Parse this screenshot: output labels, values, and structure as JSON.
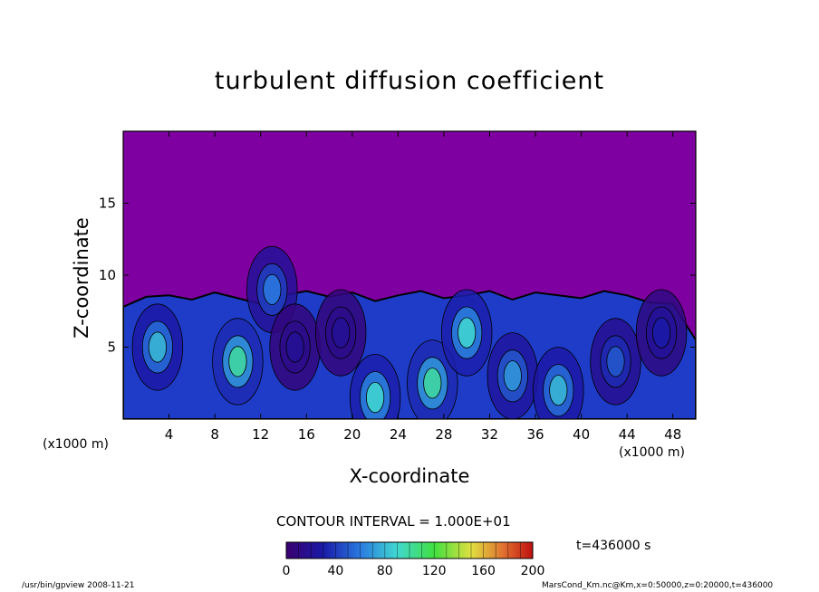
{
  "chart_data": {
    "type": "heatmap",
    "title": "turbulent diffusion coefficient",
    "xlabel": "X-coordinate",
    "ylabel": "Z-coordinate",
    "x_unit": "(x1000 m)",
    "xlim": [
      0,
      50
    ],
    "ylim": [
      0,
      20
    ],
    "x_ticks": [
      4,
      8,
      12,
      16,
      20,
      24,
      28,
      32,
      36,
      40,
      44,
      48
    ],
    "y_ticks": [
      5,
      10,
      15
    ],
    "contour_interval": "CONTOUR INTERVAL = 1.000E+01",
    "colorbar": {
      "min": 0,
      "max": 200,
      "ticks": [
        0,
        40,
        80,
        120,
        160,
        200
      ]
    },
    "time": "t=436000 s",
    "boundary_layer_top": [
      {
        "x": 0,
        "z": 7.8
      },
      {
        "x": 2,
        "z": 8.5
      },
      {
        "x": 4,
        "z": 8.6
      },
      {
        "x": 6,
        "z": 8.3
      },
      {
        "x": 8,
        "z": 8.8
      },
      {
        "x": 10,
        "z": 8.4
      },
      {
        "x": 12,
        "z": 8.0
      },
      {
        "x": 14,
        "z": 8.6
      },
      {
        "x": 16,
        "z": 8.9
      },
      {
        "x": 18,
        "z": 8.5
      },
      {
        "x": 20,
        "z": 8.8
      },
      {
        "x": 22,
        "z": 8.2
      },
      {
        "x": 24,
        "z": 8.6
      },
      {
        "x": 26,
        "z": 8.9
      },
      {
        "x": 28,
        "z": 8.4
      },
      {
        "x": 30,
        "z": 8.6
      },
      {
        "x": 32,
        "z": 8.9
      },
      {
        "x": 34,
        "z": 8.3
      },
      {
        "x": 36,
        "z": 8.8
      },
      {
        "x": 38,
        "z": 8.6
      },
      {
        "x": 40,
        "z": 8.4
      },
      {
        "x": 42,
        "z": 8.9
      },
      {
        "x": 44,
        "z": 8.6
      },
      {
        "x": 46,
        "z": 8.1
      },
      {
        "x": 48,
        "z": 8.0
      },
      {
        "x": 50,
        "z": 5.5
      }
    ],
    "plumes": [
      {
        "x": 3,
        "z": 5,
        "value": 80
      },
      {
        "x": 10,
        "z": 4,
        "value": 100
      },
      {
        "x": 13,
        "z": 9,
        "value": 60
      },
      {
        "x": 15,
        "z": 5,
        "value": 20
      },
      {
        "x": 19,
        "z": 6,
        "value": 20
      },
      {
        "x": 22,
        "z": 1.5,
        "value": 90
      },
      {
        "x": 27,
        "z": 2.5,
        "value": 100
      },
      {
        "x": 30,
        "z": 6,
        "value": 90
      },
      {
        "x": 34,
        "z": 3,
        "value": 70
      },
      {
        "x": 38,
        "z": 2,
        "value": 80
      },
      {
        "x": 43,
        "z": 4,
        "value": 50
      },
      {
        "x": 47,
        "z": 6,
        "value": 30
      }
    ]
  },
  "colors": {
    "background_field": "#7f00a0",
    "contour_line": "#000000"
  },
  "footer": {
    "left": "/usr/bin/gpview   2008-11-21",
    "right": "MarsCond_Km.nc@Km,x=0:50000,z=0:20000,t=436000"
  }
}
